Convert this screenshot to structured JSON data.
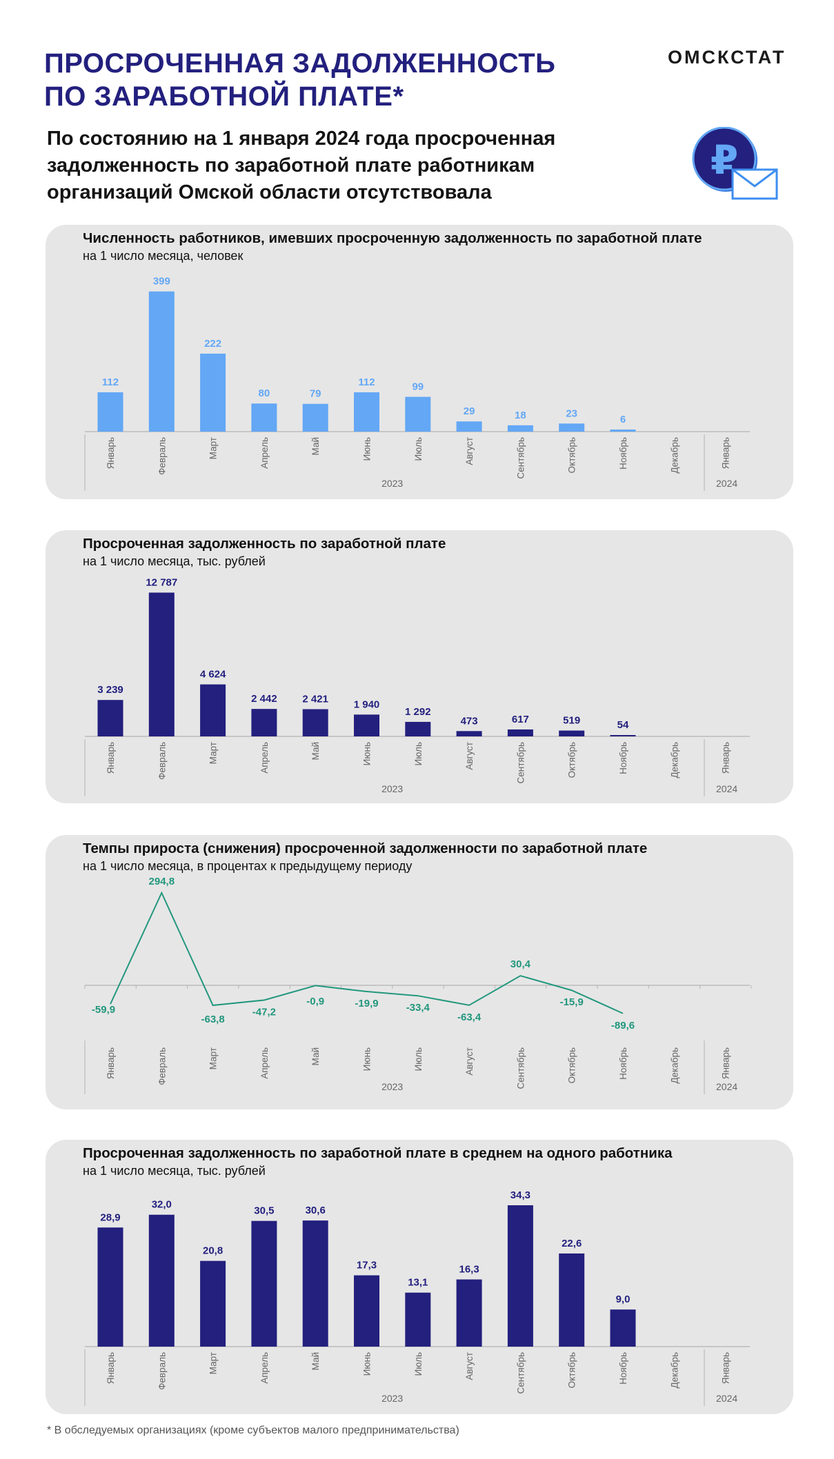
{
  "header": {
    "title_line1": "ПРОСРОЧЕННАЯ ЗАДОЛЖЕННОСТЬ",
    "title_line2": "ПО ЗАРАБОТНОЙ ПЛАТЕ*",
    "brand": "ОМСКСТАТ",
    "subtitle_line1": "По состоянию на 1 января 2024 года просроченная",
    "subtitle_line2": "задолженность по заработной плате работникам",
    "subtitle_line3": "организаций Омской области отсутствовала"
  },
  "icons": {
    "logo": "ruble-envelope-icon"
  },
  "colors": {
    "accent": "#23207e",
    "light_bar": "#63a7f5",
    "line": "#22977d",
    "panel": "#e6e6e6"
  },
  "footnote": "* В обследуемых организациях  (кроме субъектов малого предпринимательства)",
  "chart_data": [
    {
      "type": "bar",
      "title": "Численность работников, имевших просроченную задолженность по заработной плате",
      "subtitle": "на 1 число месяца, человек",
      "categories": [
        "Январь",
        "Февраль",
        "Март",
        "Апрель",
        "Май",
        "Июнь",
        "Июль",
        "Август",
        "Сентябрь",
        "Октябрь",
        "Ноябрь",
        "Декабрь",
        "Январь"
      ],
      "values": [
        112,
        399,
        222,
        80,
        79,
        112,
        99,
        29,
        18,
        23,
        6,
        null,
        null
      ],
      "labels": [
        "112",
        "399",
        "222",
        "80",
        "79",
        "112",
        "99",
        "29",
        "18",
        "23",
        "6",
        "",
        ""
      ],
      "groups": [
        {
          "label": "2023",
          "count": 12
        },
        {
          "label": "2024",
          "count": 1
        }
      ],
      "ylim": [
        0,
        420
      ],
      "color": "#63a7f5"
    },
    {
      "type": "bar",
      "title": "Просроченная задолженность  по заработной плате",
      "subtitle": "на 1 число месяца, тыс. рублей",
      "categories": [
        "Январь",
        "Февраль",
        "Март",
        "Апрель",
        "Май",
        "Июнь",
        "Июль",
        "Август",
        "Сентябрь",
        "Октябрь",
        "Ноябрь",
        "Декабрь",
        "Январь"
      ],
      "values": [
        3239,
        12787,
        4624,
        2442,
        2421,
        1940,
        1292,
        473,
        617,
        519,
        54,
        null,
        null
      ],
      "labels": [
        "3 239",
        "12 787",
        "4 624",
        "2 442",
        "2 421",
        "1 940",
        "1 292",
        "473",
        "617",
        "519",
        "54",
        "",
        ""
      ],
      "groups": [
        {
          "label": "2023",
          "count": 12
        },
        {
          "label": "2024",
          "count": 1
        }
      ],
      "ylim": [
        0,
        13000
      ],
      "color": "#23207e"
    },
    {
      "type": "line",
      "title": "Темпы прироста (снижения) просроченной задолженности  по заработной плате",
      "subtitle": "на 1 число месяца,  в процентах к предыдущему периоду",
      "categories": [
        "Январь",
        "Февраль",
        "Март",
        "Апрель",
        "Май",
        "Июнь",
        "Июль",
        "Август",
        "Сентябрь",
        "Октябрь",
        "Ноябрь",
        "Декабрь",
        "Январь"
      ],
      "values": [
        -59.9,
        294.8,
        -63.8,
        -47.2,
        -0.9,
        -19.9,
        -33.4,
        -63.4,
        30.4,
        -15.9,
        -89.6,
        null,
        null
      ],
      "labels": [
        "-59,9",
        "294,8",
        "-63,8",
        "-47,2",
        "-0,9",
        "-19,9",
        "-33,4",
        "-63,4",
        "30,4",
        "-15,9",
        "-89,6",
        "",
        ""
      ],
      "groups": [
        {
          "label": "2023",
          "count": 12
        },
        {
          "label": "2024",
          "count": 1
        }
      ],
      "ylim": [
        -100,
        300
      ],
      "color": "#22977d"
    },
    {
      "type": "bar",
      "title": "Просроченная задолженность  по заработной плате  в среднем на одного работника",
      "subtitle": "на 1 число месяца, тыс. рублей",
      "categories": [
        "Январь",
        "Февраль",
        "Март",
        "Апрель",
        "Май",
        "Июнь",
        "Июль",
        "Август",
        "Сентябрь",
        "Октябрь",
        "Ноябрь",
        "Декабрь",
        "Январь"
      ],
      "values": [
        28.9,
        32.0,
        20.8,
        30.5,
        30.6,
        17.3,
        13.1,
        16.3,
        34.3,
        22.6,
        9.0,
        null,
        null
      ],
      "labels": [
        "28,9",
        "32,0",
        "20,8",
        "30,5",
        "30,6",
        "17,3",
        "13,1",
        "16,3",
        "34,3",
        "22,6",
        "9,0",
        "",
        ""
      ],
      "groups": [
        {
          "label": "2023",
          "count": 12
        },
        {
          "label": "2024",
          "count": 1
        }
      ],
      "ylim": [
        0,
        34.3
      ],
      "color": "#23207e"
    }
  ]
}
